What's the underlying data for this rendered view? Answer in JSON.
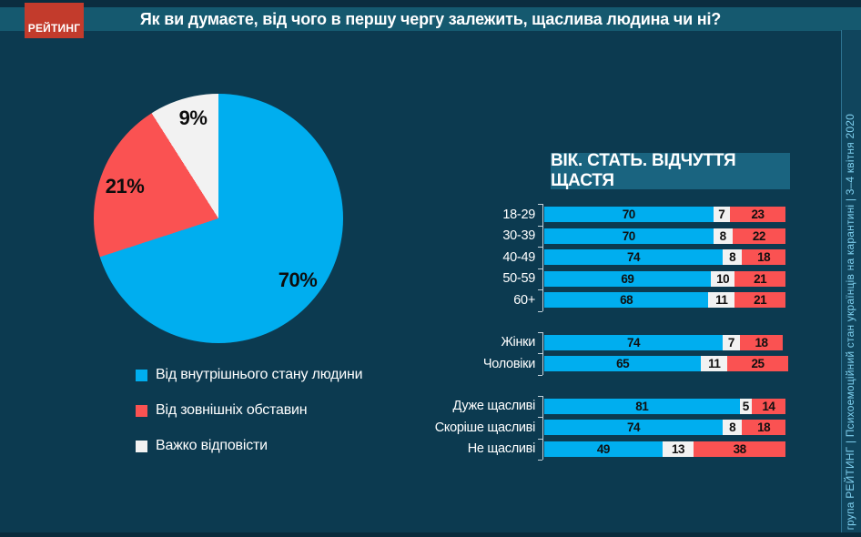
{
  "header": {
    "logo_text": "РЕЙТИНГ",
    "title": "Як ви думаєте, від чого в першу чергу залежить, щаслива людина чи ні?"
  },
  "sidebar": {
    "text": "група РЕЙТИНГ  |  Психоемоційний стан українців на карантині  |  3–4 квітня 2020"
  },
  "colors": {
    "background": "#0C3A50",
    "header_band": "#15596F",
    "panel_title_box": "#1A6480",
    "logo_red": "#C33B2C",
    "series_blue": "#00AEEF",
    "series_red": "#FA5252",
    "series_white": "#F2F2F2",
    "sidebar_text": "#7FD0EF"
  },
  "chart_data": [
    {
      "type": "pie",
      "title": "",
      "labels": [
        "Від внутрішнього стану людини",
        "Від зовнішніх обставин",
        "Важко відповісти"
      ],
      "values": [
        70,
        21,
        9
      ],
      "value_labels": [
        "70%",
        "21%",
        "9%"
      ],
      "colors": [
        "#00AEEF",
        "#FA5252",
        "#F2F2F2"
      ],
      "start_angle_deg": 0,
      "direction": "clockwise",
      "legend_position": "bottom-left"
    },
    {
      "type": "bar",
      "stacked": true,
      "orientation": "horizontal",
      "title": "ВІК. СТАТЬ. ВІДЧУТТЯ ЩАСТЯ",
      "series_names": [
        "Від внутрішнього стану людини",
        "Важко відповісти",
        "Від зовнішніх обставин"
      ],
      "series_keys": [
        "internal-state",
        "hard-to-say",
        "external-circumstances"
      ],
      "series_colors": [
        "#00AEEF",
        "#F2F2F2",
        "#FA5252"
      ],
      "xlim": [
        0,
        100
      ],
      "grid": false,
      "groups": [
        {
          "name": "age",
          "rows": [
            {
              "label": "18-29",
              "values": [
                70,
                7,
                23
              ]
            },
            {
              "label": "30-39",
              "values": [
                70,
                8,
                22
              ]
            },
            {
              "label": "40-49",
              "values": [
                74,
                8,
                18
              ]
            },
            {
              "label": "50-59",
              "values": [
                69,
                10,
                21
              ]
            },
            {
              "label": "60+",
              "values": [
                68,
                11,
                21
              ]
            }
          ]
        },
        {
          "name": "gender",
          "rows": [
            {
              "label": "Жінки",
              "values": [
                74,
                7,
                18
              ]
            },
            {
              "label": "Чоловіки",
              "values": [
                65,
                11,
                25
              ]
            }
          ]
        },
        {
          "name": "happiness",
          "rows": [
            {
              "label": "Дуже щасливі",
              "values": [
                81,
                5,
                14
              ]
            },
            {
              "label": "Скоріше щасливі",
              "values": [
                74,
                8,
                18
              ]
            },
            {
              "label": "Не щасливі",
              "values": [
                49,
                13,
                38
              ]
            }
          ]
        }
      ]
    }
  ]
}
